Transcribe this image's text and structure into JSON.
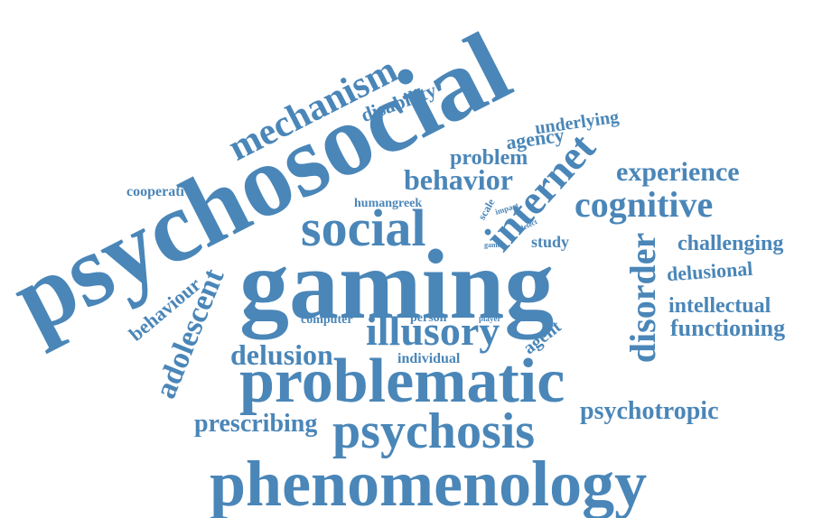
{
  "color": "#4a86b8",
  "words": {
    "psychosocial": "psychosocial",
    "gaming": "gaming",
    "phenomenology": "phenomenology",
    "problematic": "problematic",
    "psychosis": "psychosis",
    "social": "social",
    "internet": "internet",
    "illusory": "illusory",
    "disorder": "disorder",
    "mechanism": "mechanism",
    "cognitive": "cognitive",
    "experience": "experience",
    "behavior": "behavior",
    "adolescent": "adolescent",
    "delusion": "delusion",
    "psychotropic": "psychotropic",
    "prescribing": "prescribing",
    "challenging": "challenging",
    "functioning": "functioning",
    "intellectual": "intellectual",
    "delusional": "delusional",
    "behaviour": "behaviour",
    "problem": "problem",
    "agency": "agency",
    "underlying": "underlying",
    "disability": "disability",
    "cooperative": "cooperative",
    "study": "study",
    "agent": "agent",
    "human": "human",
    "greek": "greek",
    "scale": "scale",
    "impact": "impact",
    "detect": "detect",
    "game": "game",
    "computer": "computer",
    "person": "person",
    "player": "player",
    "individual": "individual"
  }
}
